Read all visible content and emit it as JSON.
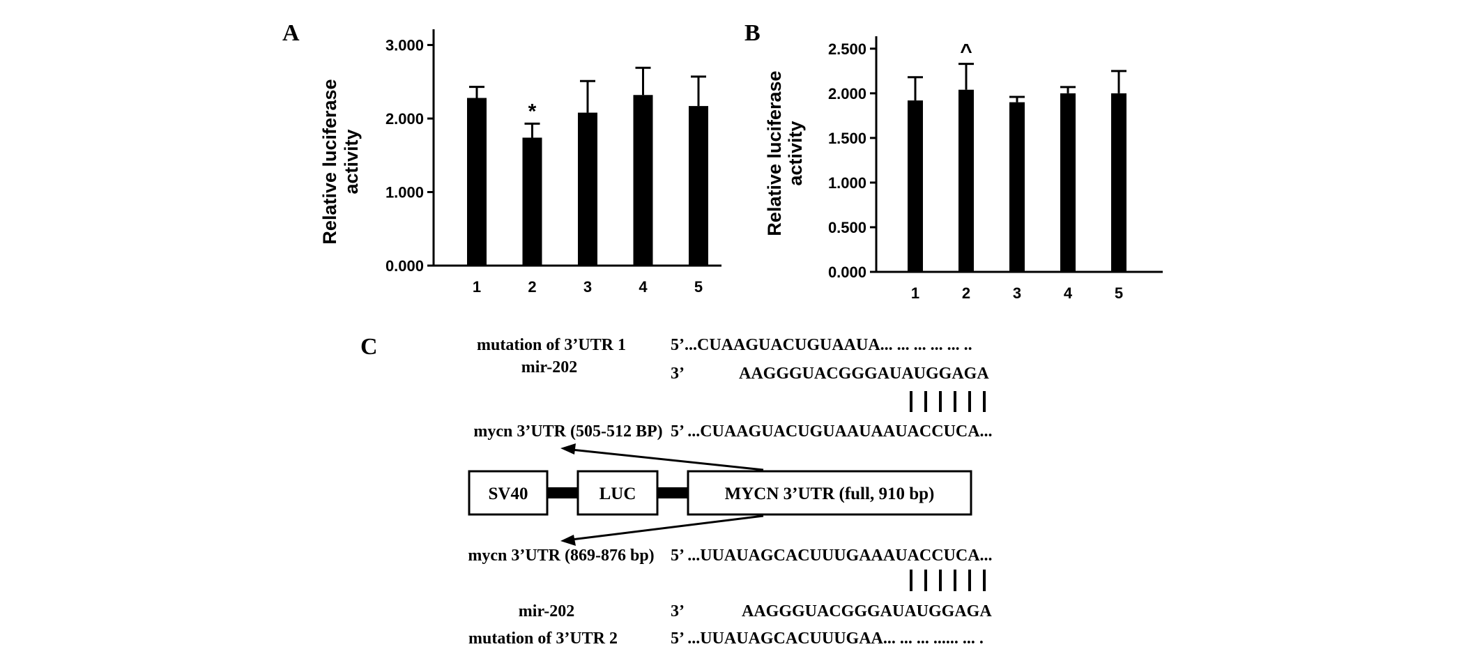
{
  "chart_data": [
    {
      "type": "bar",
      "panel": "A",
      "ylabel_line1": "Relative luciferase",
      "ylabel_line2": "activity",
      "categories": [
        "1",
        "2",
        "3",
        "4",
        "5"
      ],
      "values": [
        2.28,
        1.74,
        2.08,
        2.32,
        2.17
      ],
      "errors": [
        0.15,
        0.19,
        0.43,
        0.37,
        0.4
      ],
      "yticks": [
        "0.000",
        "1.000",
        "2.000",
        "3.000"
      ],
      "ylim": [
        0,
        3.1
      ],
      "annotations": [
        {
          "category": "2",
          "text": "*"
        }
      ]
    },
    {
      "type": "bar",
      "panel": "B",
      "ylabel_line1": "Relative luciferase",
      "ylabel_line2": "activity",
      "categories": [
        "1",
        "2",
        "3",
        "4",
        "5"
      ],
      "values": [
        1.92,
        2.04,
        1.9,
        2.0,
        2.0
      ],
      "errors": [
        0.26,
        0.29,
        0.06,
        0.07,
        0.25
      ],
      "yticks": [
        "0.000",
        "0.500",
        "1.000",
        "1.500",
        "2.000",
        "2.500"
      ],
      "ylim": [
        0,
        2.6
      ],
      "annotations": [
        {
          "category": "2",
          "text": "^"
        }
      ]
    }
  ],
  "diagram": {
    "panel": "C",
    "mutation1_label": "mutation of 3’UTR 1",
    "mutation1_seq": "5’...CUAAGUACUGUAAUA... ... ... ... ... ..",
    "mir_top_label": "mir-202",
    "mir_top_prefix": "3’",
    "mir_top_seq": "AAGGGUACGGGAUAUGGAGA",
    "site1_label": "mycn 3’UTR (505-512 BP)",
    "site1_seq": "5’ ...CUAAGUACUGUAAUAAUACCUCA...",
    "box_sv40": "SV40",
    "box_luc": "LUC",
    "box_utr": "MYCN 3’UTR (full, 910 bp)",
    "site2_label": "mycn 3’UTR (869-876 bp)",
    "site2_seq": "5’ ...UUAUAGCACUUUGAAAUACCUCA...",
    "mir_bottom_label": "mir-202",
    "mir_bottom_prefix": "3’",
    "mir_bottom_seq": "AAGGGUACGGGAUAUGGAGA",
    "mutation2_label": "mutation of 3’UTR 2",
    "mutation2_seq": "5’ ...UUAUAGCACUUUGAA... ... ... ...... ... ."
  }
}
